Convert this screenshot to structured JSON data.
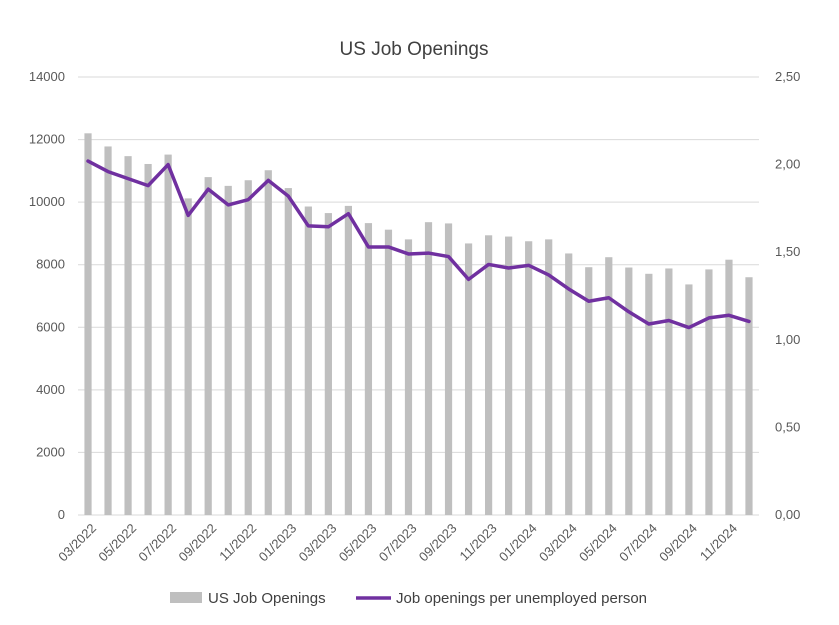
{
  "chart_data": {
    "type": "bar",
    "title": "US Job Openings",
    "categories": [
      "03/2022",
      "04/2022",
      "05/2022",
      "06/2022",
      "07/2022",
      "08/2022",
      "09/2022",
      "10/2022",
      "11/2022",
      "12/2022",
      "01/2023",
      "02/2023",
      "03/2023",
      "04/2023",
      "05/2023",
      "06/2023",
      "07/2023",
      "08/2023",
      "09/2023",
      "10/2023",
      "11/2023",
      "12/2023",
      "01/2024",
      "02/2024",
      "03/2024",
      "04/2024",
      "05/2024",
      "06/2024",
      "07/2024",
      "08/2024",
      "09/2024",
      "10/2024",
      "11/2024",
      "12/2024"
    ],
    "x_tick_labels": [
      "03/2022",
      "05/2022",
      "07/2022",
      "09/2022",
      "11/2022",
      "01/2023",
      "03/2023",
      "05/2023",
      "07/2023",
      "09/2023",
      "11/2023",
      "01/2024",
      "03/2024",
      "05/2024",
      "07/2024",
      "09/2024",
      "11/2024"
    ],
    "y_left": {
      "min": 0,
      "max": 14000,
      "ticks": [
        "0",
        "2000",
        "4000",
        "6000",
        "8000",
        "10000",
        "12000",
        "14000"
      ]
    },
    "y_right": {
      "min": 0,
      "max": 2.5,
      "ticks": [
        "0,00",
        "0,50",
        "1,00",
        "1,50",
        "2,00",
        "2,50"
      ]
    },
    "grid": true,
    "legend_position": "bottom",
    "series": [
      {
        "name": "US Job Openings",
        "type": "bar",
        "axis": "left",
        "color": "#bfbfbf",
        "values": [
          12200,
          11780,
          11470,
          11220,
          11520,
          10120,
          10800,
          10520,
          10700,
          11020,
          10450,
          9860,
          9650,
          9880,
          9330,
          9120,
          8810,
          9360,
          9320,
          8680,
          8940,
          8900,
          8750,
          8810,
          8360,
          7920,
          8240,
          7910,
          7710,
          7880,
          7370,
          7850,
          8160,
          7600
        ]
      },
      {
        "name": "Job openings per unemployed person",
        "type": "line",
        "axis": "right",
        "color": "#7030a0",
        "values": [
          2.02,
          1.96,
          1.92,
          1.88,
          2.0,
          1.71,
          1.86,
          1.77,
          1.8,
          1.91,
          1.82,
          1.65,
          1.645,
          1.72,
          1.53,
          1.53,
          1.49,
          1.495,
          1.475,
          1.345,
          1.43,
          1.41,
          1.425,
          1.37,
          1.29,
          1.22,
          1.24,
          1.16,
          1.09,
          1.11,
          1.07,
          1.125,
          1.14,
          1.105
        ]
      }
    ]
  }
}
